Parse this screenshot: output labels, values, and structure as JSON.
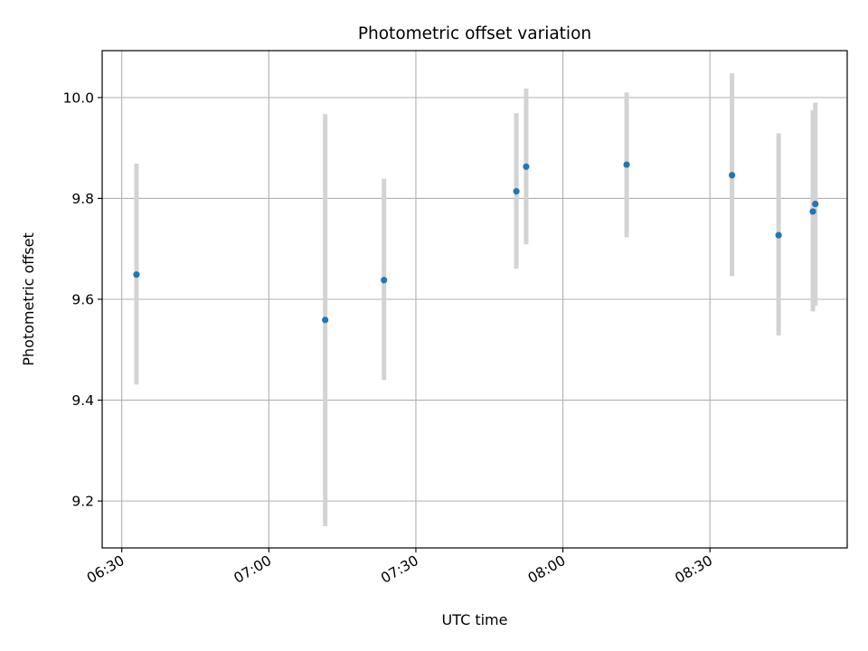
{
  "chart_data": {
    "type": "scatter",
    "title": "Photometric offset variation",
    "xlabel": "UTC time",
    "ylabel": "Photometric offset",
    "x_axis_type": "time",
    "xlim": [
      "06:26",
      "08:58"
    ],
    "ylim": [
      9.107,
      10.093
    ],
    "xticks": [
      "06:30",
      "07:00",
      "07:30",
      "08:00",
      "08:30"
    ],
    "yticks": [
      9.2,
      9.4,
      9.6,
      9.8,
      10.0
    ],
    "ytick_labels": [
      "9.2",
      "9.4",
      "9.6",
      "9.8",
      "10.0"
    ],
    "grid": true,
    "legend": "none",
    "points": [
      {
        "x": "06:33",
        "y": 9.649,
        "yerr_low": 9.431,
        "yerr_high": 9.869
      },
      {
        "x": "07:11.5",
        "y": 9.559,
        "yerr_low": 9.15,
        "yerr_high": 9.967
      },
      {
        "x": "07:23.5",
        "y": 9.638,
        "yerr_low": 9.44,
        "yerr_high": 9.839
      },
      {
        "x": "07:50.5",
        "y": 9.814,
        "yerr_low": 9.661,
        "yerr_high": 9.969
      },
      {
        "x": "07:52.5",
        "y": 9.863,
        "yerr_low": 9.709,
        "yerr_high": 10.018
      },
      {
        "x": "08:13",
        "y": 9.867,
        "yerr_low": 9.723,
        "yerr_high": 10.01
      },
      {
        "x": "08:34.5",
        "y": 9.846,
        "yerr_low": 9.646,
        "yerr_high": 10.048
      },
      {
        "x": "08:44",
        "y": 9.727,
        "yerr_low": 9.528,
        "yerr_high": 9.929
      },
      {
        "x": "08:51",
        "y": 9.774,
        "yerr_low": 9.576,
        "yerr_high": 9.975
      },
      {
        "x": "08:51.5",
        "y": 9.789,
        "yerr_low": 9.587,
        "yerr_high": 9.99
      }
    ],
    "colors": {
      "marker": "#1f77b4",
      "errorbar": "#d3d3d3",
      "grid": "#b0b0b0",
      "frame": "#000000"
    }
  }
}
